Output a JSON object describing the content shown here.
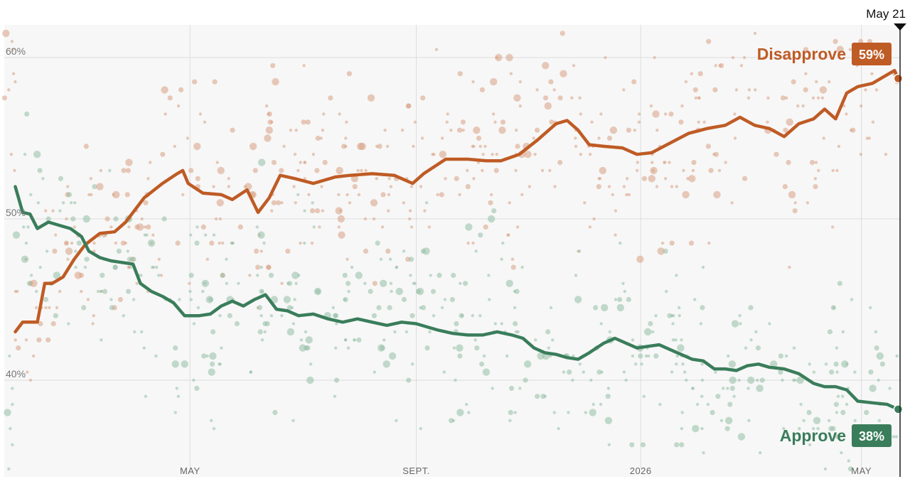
{
  "chart_data": {
    "type": "line",
    "current_date_label": "May 21",
    "ylim": [
      35,
      62
    ],
    "y_ticks": [
      {
        "value": 40,
        "label": "40%"
      },
      {
        "value": 50,
        "label": "50%"
      },
      {
        "value": 60,
        "label": "60%"
      }
    ],
    "x_range_days": [
      0,
      487
    ],
    "x_ticks": [
      {
        "day": 101,
        "label": "MAY"
      },
      {
        "day": 224,
        "label": "SEPT."
      },
      {
        "day": 346,
        "label": "2026"
      },
      {
        "day": 466,
        "label": "MAY"
      }
    ],
    "current_day": 486,
    "grid": true,
    "series": [
      {
        "name": "Disapprove",
        "badge": "59%",
        "color": "#bf5b25",
        "dot_color": "#d9a184",
        "values": [
          [
            6,
            43
          ],
          [
            10,
            43.6
          ],
          [
            18,
            43.6
          ],
          [
            22,
            46
          ],
          [
            26,
            46
          ],
          [
            32,
            46.4
          ],
          [
            38,
            47.5
          ],
          [
            44,
            48.4
          ],
          [
            52,
            49.1
          ],
          [
            60,
            49.2
          ],
          [
            66,
            49.8
          ],
          [
            76,
            51.3
          ],
          [
            86,
            52.2
          ],
          [
            94,
            52.8
          ],
          [
            97,
            53
          ],
          [
            100,
            52.2
          ],
          [
            108,
            51.6
          ],
          [
            118,
            51.5
          ],
          [
            124,
            51.2
          ],
          [
            132,
            51.8
          ],
          [
            138,
            50.4
          ],
          [
            144,
            51.3
          ],
          [
            150,
            52.7
          ],
          [
            158,
            52.5
          ],
          [
            168,
            52.2
          ],
          [
            180,
            52.6
          ],
          [
            188,
            52.7
          ],
          [
            200,
            52.8
          ],
          [
            212,
            52.7
          ],
          [
            222,
            52.2
          ],
          [
            228,
            52.8
          ],
          [
            240,
            53.7
          ],
          [
            252,
            53.7
          ],
          [
            262,
            53.6
          ],
          [
            270,
            53.6
          ],
          [
            280,
            54
          ],
          [
            290,
            54.9
          ],
          [
            300,
            55.9
          ],
          [
            306,
            56.1
          ],
          [
            312,
            55.5
          ],
          [
            318,
            54.6
          ],
          [
            326,
            54.5
          ],
          [
            336,
            54.4
          ],
          [
            344,
            54
          ],
          [
            352,
            54.1
          ],
          [
            362,
            54.7
          ],
          [
            372,
            55.3
          ],
          [
            382,
            55.6
          ],
          [
            392,
            55.8
          ],
          [
            400,
            56.3
          ],
          [
            408,
            55.8
          ],
          [
            416,
            55.6
          ],
          [
            424,
            55.1
          ],
          [
            432,
            55.9
          ],
          [
            440,
            56.2
          ],
          [
            446,
            56.8
          ],
          [
            452,
            56.2
          ],
          [
            458,
            57.8
          ],
          [
            464,
            58.2
          ],
          [
            472,
            58.4
          ],
          [
            478,
            58.8
          ],
          [
            484,
            59.2
          ],
          [
            486,
            58.7
          ]
        ]
      },
      {
        "name": "Approve",
        "badge": "38%",
        "color": "#3a7d5b",
        "dot_color": "#93bfa6",
        "values": [
          [
            6,
            52
          ],
          [
            10,
            50.4
          ],
          [
            14,
            50.3
          ],
          [
            18,
            49.4
          ],
          [
            24,
            49.8
          ],
          [
            30,
            49.6
          ],
          [
            36,
            49.4
          ],
          [
            42,
            48.9
          ],
          [
            46,
            48
          ],
          [
            52,
            47.6
          ],
          [
            58,
            47.4
          ],
          [
            64,
            47.3
          ],
          [
            70,
            47.2
          ],
          [
            74,
            46
          ],
          [
            80,
            45.5
          ],
          [
            86,
            45.2
          ],
          [
            92,
            44.8
          ],
          [
            98,
            44
          ],
          [
            106,
            44
          ],
          [
            112,
            44.1
          ],
          [
            118,
            44.6
          ],
          [
            124,
            44.9
          ],
          [
            130,
            44.6
          ],
          [
            136,
            45
          ],
          [
            142,
            45.3
          ],
          [
            148,
            44.4
          ],
          [
            154,
            44.3
          ],
          [
            160,
            44
          ],
          [
            168,
            44.1
          ],
          [
            176,
            43.8
          ],
          [
            184,
            43.6
          ],
          [
            192,
            43.8
          ],
          [
            200,
            43.6
          ],
          [
            208,
            43.4
          ],
          [
            216,
            43.6
          ],
          [
            224,
            43.5
          ],
          [
            230,
            43.3
          ],
          [
            236,
            43.1
          ],
          [
            244,
            42.9
          ],
          [
            252,
            42.8
          ],
          [
            260,
            42.8
          ],
          [
            268,
            43
          ],
          [
            276,
            42.8
          ],
          [
            282,
            42.6
          ],
          [
            288,
            42
          ],
          [
            294,
            41.7
          ],
          [
            300,
            41.6
          ],
          [
            306,
            41.4
          ],
          [
            312,
            41.3
          ],
          [
            318,
            41.7
          ],
          [
            326,
            42.3
          ],
          [
            332,
            42.6
          ],
          [
            338,
            42.3
          ],
          [
            344,
            42
          ],
          [
            350,
            42.1
          ],
          [
            356,
            42.2
          ],
          [
            362,
            41.9
          ],
          [
            368,
            41.6
          ],
          [
            374,
            41.3
          ],
          [
            380,
            41.2
          ],
          [
            386,
            40.7
          ],
          [
            392,
            40.7
          ],
          [
            398,
            40.6
          ],
          [
            404,
            40.9
          ],
          [
            410,
            41
          ],
          [
            416,
            40.8
          ],
          [
            424,
            40.7
          ],
          [
            432,
            40.4
          ],
          [
            440,
            39.8
          ],
          [
            446,
            39.6
          ],
          [
            452,
            39.6
          ],
          [
            458,
            39.4
          ],
          [
            464,
            38.7
          ],
          [
            472,
            38.6
          ],
          [
            480,
            38.5
          ],
          [
            486,
            38.2
          ]
        ]
      }
    ]
  }
}
